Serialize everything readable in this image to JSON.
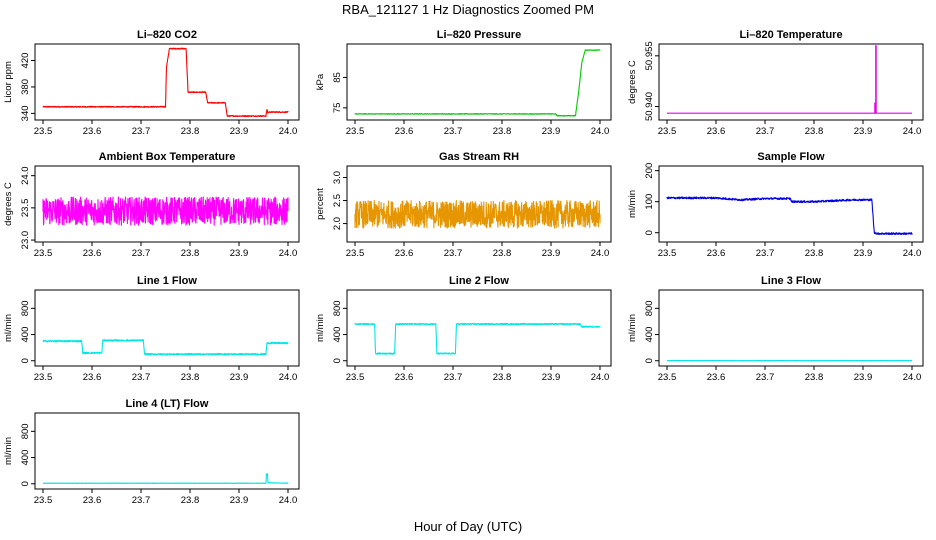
{
  "title": "RBA_121127  1 Hz Diagnostics Zoomed PM",
  "xlabel": "Hour of Day (UTC)",
  "chart_data": [
    {
      "type": "line",
      "title": "Li–820 CO2",
      "ylabel": "Licor ppm",
      "color": "#ff0000",
      "xlim": [
        23.5,
        24.0
      ],
      "ylim": [
        330,
        445
      ],
      "xticks": [
        "23.5",
        "23.6",
        "23.7",
        "23.8",
        "23.9",
        "24.0"
      ],
      "yticks": [
        {
          "v": 340,
          "l": "340"
        },
        {
          "v": 380,
          "l": "380"
        },
        {
          "v": 420,
          "l": "420"
        }
      ],
      "noise": 0.8,
      "x": [
        23.5,
        23.75,
        23.752,
        23.758,
        23.792,
        23.796,
        23.832,
        23.836,
        23.872,
        23.876,
        23.955,
        23.957,
        23.959,
        23.96,
        24.0
      ],
      "y": [
        350,
        350,
        410,
        438,
        438,
        372,
        372,
        356,
        356,
        336,
        336,
        346,
        340,
        342,
        342
      ]
    },
    {
      "type": "line",
      "title": "Li–820 Pressure",
      "ylabel": "kPa",
      "color": "#00c800",
      "xlim": [
        23.5,
        24.0
      ],
      "ylim": [
        71,
        96
      ],
      "xticks": [
        "23.5",
        "23.6",
        "23.7",
        "23.8",
        "23.9",
        "24.0"
      ],
      "yticks": [
        {
          "v": 75,
          "l": "75"
        },
        {
          "v": 85,
          "l": "85"
        }
      ],
      "noise": 0.1,
      "x": [
        23.5,
        23.91,
        23.912,
        23.95,
        23.957,
        23.963,
        23.97,
        24.0
      ],
      "y": [
        73,
        73,
        72.4,
        72.4,
        81,
        90,
        94,
        94
      ]
    },
    {
      "type": "line",
      "title": "Li–820 Temperature",
      "ylabel": "degrees C",
      "color": "#e600e6",
      "xlim": [
        23.5,
        24.0
      ],
      "ylim": [
        50.936,
        50.9585
      ],
      "xticks": [
        "23.5",
        "23.6",
        "23.7",
        "23.8",
        "23.9",
        "24.0"
      ],
      "yticks": [
        {
          "v": 50.94,
          "l": "50.940"
        },
        {
          "v": 50.955,
          "l": "50.955"
        }
      ],
      "noise": 0,
      "x": [
        23.5,
        23.924,
        23.924,
        23.9245,
        23.9245,
        23.926,
        23.926,
        23.927,
        23.927,
        24.0
      ],
      "y": [
        50.938,
        50.938,
        50.941,
        50.941,
        50.938,
        50.938,
        50.958,
        50.958,
        50.938,
        50.938
      ]
    },
    {
      "type": "line",
      "title": "Ambient Box Temperature",
      "ylabel": "degrees C",
      "color": "#ff00ff",
      "xlim": [
        23.5,
        24.0
      ],
      "ylim": [
        22.97,
        24.15
      ],
      "xticks": [
        "23.5",
        "23.6",
        "23.7",
        "23.8",
        "23.9",
        "24.0"
      ],
      "yticks": [
        {
          "v": 23.0,
          "l": "23.0"
        },
        {
          "v": 23.5,
          "l": "23.5"
        },
        {
          "v": 24.0,
          "l": "24.0"
        }
      ],
      "noise": 0.22,
      "x": [
        23.5,
        24.0
      ],
      "y": [
        23.45,
        23.45
      ]
    },
    {
      "type": "line",
      "title": "Gas Stream RH",
      "ylabel": "percent",
      "color": "#e69600",
      "xlim": [
        23.5,
        24.0
      ],
      "ylim": [
        1.6,
        3.25
      ],
      "xticks": [
        "23.5",
        "23.6",
        "23.7",
        "23.8",
        "23.9",
        "24.0"
      ],
      "yticks": [
        {
          "v": 2.0,
          "l": "2.0"
        },
        {
          "v": 2.5,
          "l": "2.5"
        },
        {
          "v": 3.0,
          "l": "3.0"
        }
      ],
      "noise": 0.3,
      "x": [
        23.5,
        24.0
      ],
      "y": [
        2.2,
        2.2
      ]
    },
    {
      "type": "line",
      "title": "Sample Flow",
      "ylabel": "ml/min",
      "color": "#0000e6",
      "xlim": [
        23.5,
        24.0
      ],
      "ylim": [
        -30,
        215
      ],
      "xticks": [
        "23.5",
        "23.6",
        "23.7",
        "23.8",
        "23.9",
        "24.0"
      ],
      "yticks": [
        {
          "v": 0,
          "l": "0"
        },
        {
          "v": 100,
          "l": "100"
        },
        {
          "v": 200,
          "l": "200"
        }
      ],
      "noise": 3,
      "x": [
        23.5,
        23.6,
        23.65,
        23.652,
        23.7,
        23.752,
        23.754,
        23.8,
        23.84,
        23.88,
        23.918,
        23.923,
        23.93,
        24.0
      ],
      "y": [
        112,
        112,
        106,
        106,
        110,
        110,
        100,
        100,
        103,
        106,
        106,
        0,
        -3,
        -3
      ]
    },
    {
      "type": "line",
      "title": "Line 1 Flow",
      "ylabel": "ml/min",
      "color": "#00e6e6",
      "xlim": [
        23.5,
        24.0
      ],
      "ylim": [
        -80,
        1080
      ],
      "xticks": [
        "23.5",
        "23.6",
        "23.7",
        "23.8",
        "23.9",
        "24.0"
      ],
      "yticks": [
        {
          "v": 0,
          "l": "0"
        },
        {
          "v": 400,
          "l": "400"
        },
        {
          "v": 800,
          "l": "800"
        }
      ],
      "noise": 12,
      "x": [
        23.5,
        23.579,
        23.581,
        23.62,
        23.622,
        23.705,
        23.707,
        23.955,
        23.957,
        24.0
      ],
      "y": [
        300,
        300,
        120,
        120,
        310,
        310,
        100,
        100,
        270,
        270
      ]
    },
    {
      "type": "line",
      "title": "Line 2 Flow",
      "ylabel": "ml/min",
      "color": "#00e6e6",
      "xlim": [
        23.5,
        24.0
      ],
      "ylim": [
        -80,
        1080
      ],
      "xticks": [
        "23.5",
        "23.6",
        "23.7",
        "23.8",
        "23.9",
        "24.0"
      ],
      "yticks": [
        {
          "v": 0,
          "l": "0"
        },
        {
          "v": 400,
          "l": "400"
        },
        {
          "v": 800,
          "l": "800"
        }
      ],
      "noise": 10,
      "x": [
        23.5,
        23.54,
        23.542,
        23.581,
        23.583,
        23.665,
        23.667,
        23.705,
        23.707,
        23.96,
        23.962,
        24.0
      ],
      "y": [
        560,
        560,
        110,
        110,
        560,
        560,
        110,
        110,
        560,
        560,
        520,
        520
      ]
    },
    {
      "type": "line",
      "title": "Line 3 Flow",
      "ylabel": "ml/min",
      "color": "#00e6e6",
      "xlim": [
        23.5,
        24.0
      ],
      "ylim": [
        -80,
        1080
      ],
      "xticks": [
        "23.5",
        "23.6",
        "23.7",
        "23.8",
        "23.9",
        "24.0"
      ],
      "yticks": [
        {
          "v": 0,
          "l": "0"
        },
        {
          "v": 400,
          "l": "400"
        },
        {
          "v": 800,
          "l": "800"
        }
      ],
      "noise": 2,
      "x": [
        23.5,
        24.0
      ],
      "y": [
        2,
        2
      ]
    },
    {
      "type": "line",
      "title": "Line 4 (LT) Flow",
      "ylabel": "ml/min",
      "color": "#00e6e6",
      "xlim": [
        23.5,
        24.0
      ],
      "ylim": [
        -80,
        1080
      ],
      "xticks": [
        "23.5",
        "23.6",
        "23.7",
        "23.8",
        "23.9",
        "24.0"
      ],
      "yticks": [
        {
          "v": 0,
          "l": "0"
        },
        {
          "v": 400,
          "l": "400"
        },
        {
          "v": 800,
          "l": "800"
        }
      ],
      "noise": 3,
      "x": [
        23.5,
        23.955,
        23.956,
        23.958,
        23.959,
        24.0
      ],
      "y": [
        8,
        8,
        150,
        150,
        15,
        8
      ]
    }
  ]
}
